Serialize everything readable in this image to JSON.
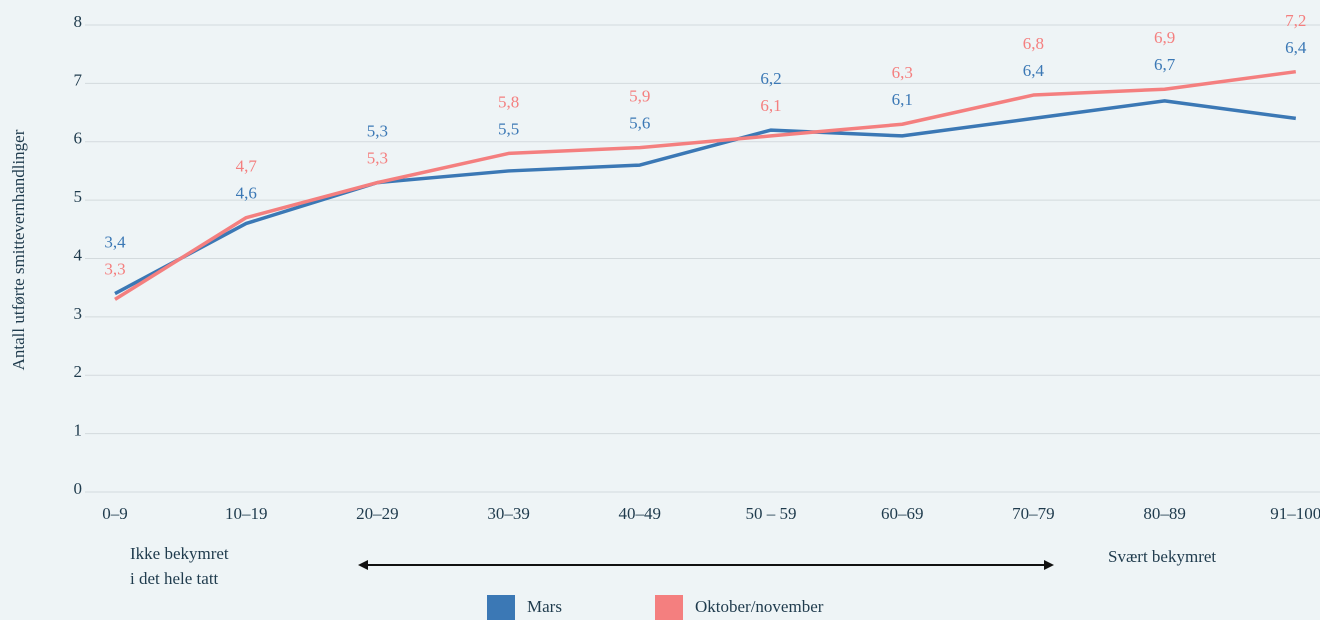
{
  "chart_data": {
    "type": "line",
    "y_axis_label": "Antall utførte smittevernhandlinger",
    "categories": [
      "0–9",
      "10–19",
      "20–29",
      "30–39",
      "40–49",
      "50 – 59",
      "60–69",
      "70–79",
      "80–89",
      "91–100"
    ],
    "series": [
      {
        "name": "Mars",
        "color": "#3b78b5",
        "values": [
          3.4,
          4.6,
          5.3,
          5.5,
          5.6,
          6.2,
          6.1,
          6.4,
          6.7,
          6.4
        ],
        "value_labels": [
          "3,4",
          "4,6",
          "5,3",
          "5,5",
          "5,6",
          "6,2",
          "6,1",
          "6,4",
          "6,7",
          "6,4"
        ]
      },
      {
        "name": "Oktober/november",
        "color": "#f47f7f",
        "values": [
          3.3,
          4.7,
          5.3,
          5.8,
          5.9,
          6.1,
          6.3,
          6.8,
          6.9,
          7.2
        ],
        "value_labels": [
          "3,3",
          "4,7",
          "5,3",
          "5,8",
          "5,9",
          "6,1",
          "6,3",
          "6,8",
          "6,9",
          "7,2"
        ]
      }
    ],
    "ylim": [
      0,
      8
    ],
    "yticks": [
      0,
      1,
      2,
      3,
      4,
      5,
      6,
      7,
      8
    ],
    "grid": true,
    "annotations": [
      "Ikke bekymret",
      "i det hele tatt",
      "Svært bekymret"
    ],
    "legend": "bottom"
  }
}
